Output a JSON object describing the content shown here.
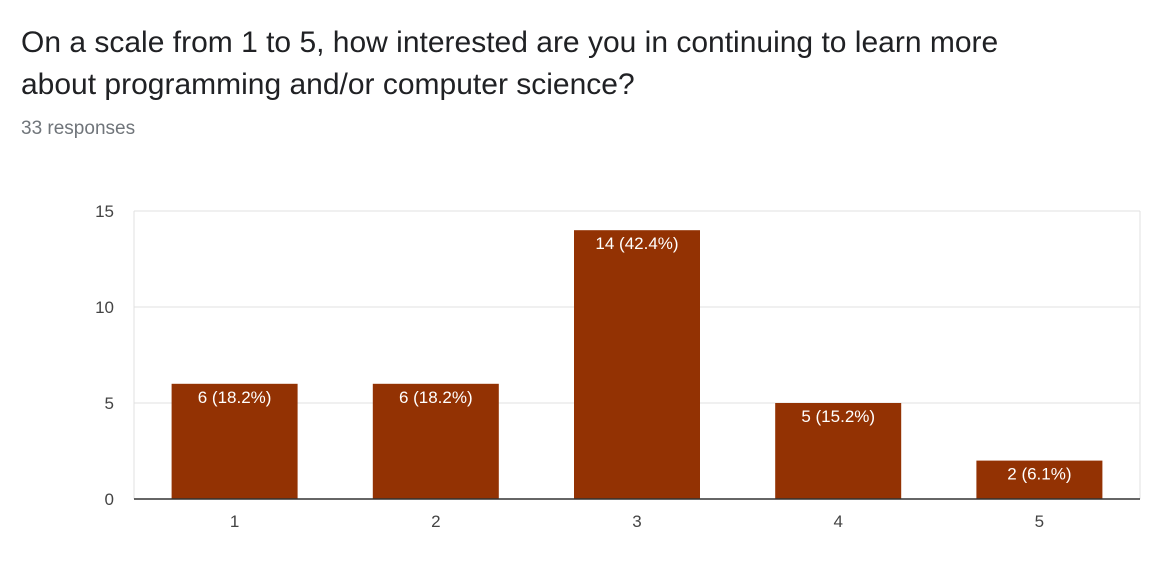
{
  "header": {
    "question": "On a scale from 1 to 5, how interested are you in continuing to learn more about programming and/or computer science?",
    "responses": "33 responses"
  },
  "colors": {
    "bar": "#933203",
    "grid": "#e0e0e0",
    "axis": "#333333"
  },
  "chart_data": {
    "type": "bar",
    "categories": [
      "1",
      "2",
      "3",
      "4",
      "5"
    ],
    "values": [
      6,
      6,
      14,
      5,
      2
    ],
    "data_labels": [
      "6 (18.2%)",
      "6 (18.2%)",
      "14 (42.4%)",
      "5 (15.2%)",
      "2 (6.1%)"
    ],
    "y_ticks": [
      "0",
      "5",
      "10",
      "15"
    ],
    "ylim": [
      0,
      15
    ],
    "grid": true,
    "legend": "none"
  }
}
